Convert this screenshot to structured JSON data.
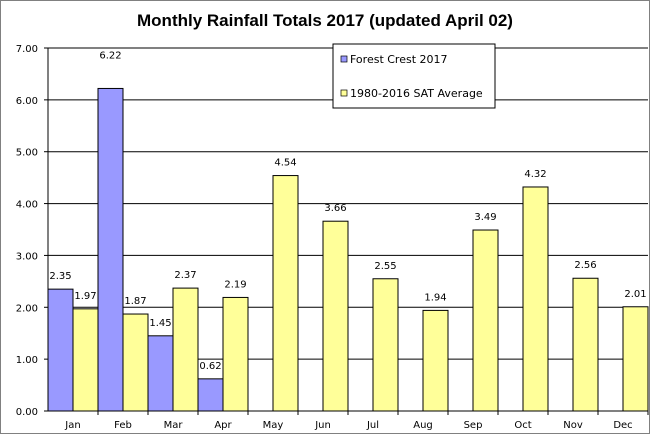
{
  "chart_data": {
    "type": "bar",
    "title": "Monthly Rainfall Totals 2017 (updated April 02)",
    "xlabel": "",
    "ylabel": "",
    "ylim": [
      0,
      7
    ],
    "yticks": [
      "0.00",
      "1.00",
      "2.00",
      "3.00",
      "4.00",
      "5.00",
      "6.00",
      "7.00"
    ],
    "grid": true,
    "legend_position": "top-center",
    "categories": [
      "Jan",
      "Feb",
      "Mar",
      "Apr",
      "May",
      "Jun",
      "Jul",
      "Aug",
      "Sep",
      "Oct",
      "Nov",
      "Dec"
    ],
    "series": [
      {
        "name": "Forest Crest 2017",
        "color": "#9999ff",
        "values": [
          2.35,
          6.22,
          1.45,
          0.62,
          null,
          null,
          null,
          null,
          null,
          null,
          null,
          null
        ]
      },
      {
        "name": "1980-2016 SAT Average",
        "color": "#ffff99",
        "values": [
          1.97,
          1.87,
          2.37,
          2.19,
          4.54,
          3.66,
          2.55,
          1.94,
          3.49,
          4.32,
          2.56,
          2.01
        ]
      }
    ]
  }
}
